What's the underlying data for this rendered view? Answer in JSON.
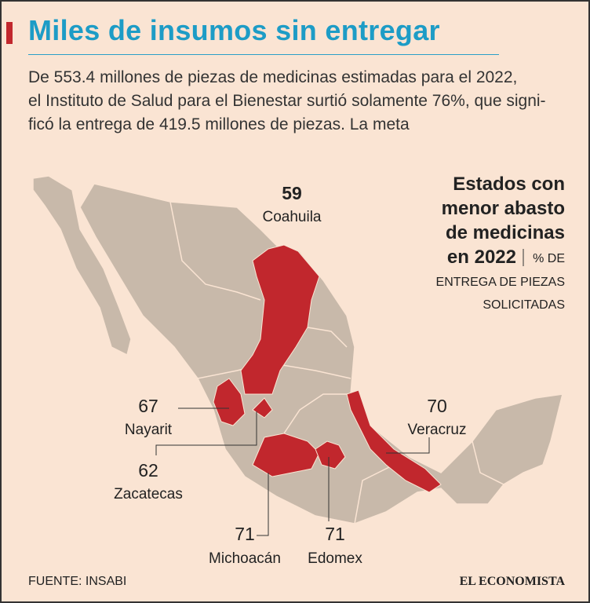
{
  "header": {
    "title": "Miles de insumos sin entregar",
    "description": [
      "De 553.4 millones de piezas de medicinas estimadas para el 2022,",
      "el Instituto de Salud para el Bienestar surtió solamente 76%, que signi-",
      "ficó la entrega de 419.5 millones de piezas. La meta"
    ]
  },
  "legend": {
    "title": [
      "Estados con",
      "menor abasto",
      "de medicinas",
      "en 2022"
    ],
    "unit": [
      "% DE",
      "ENTREGA DE PIEZAS",
      "SOLICITADAS"
    ]
  },
  "states": [
    {
      "name": "Coahuila",
      "value": 59
    },
    {
      "name": "Nayarit",
      "value": 67
    },
    {
      "name": "Zacatecas",
      "value": 62
    },
    {
      "name": "Michoacán",
      "value": 71
    },
    {
      "name": "Edomex",
      "value": 71
    },
    {
      "name": "Veracruz",
      "value": 70
    }
  ],
  "source": "FUENTE: INSABI",
  "brand": "EL ECONOMISTA"
}
